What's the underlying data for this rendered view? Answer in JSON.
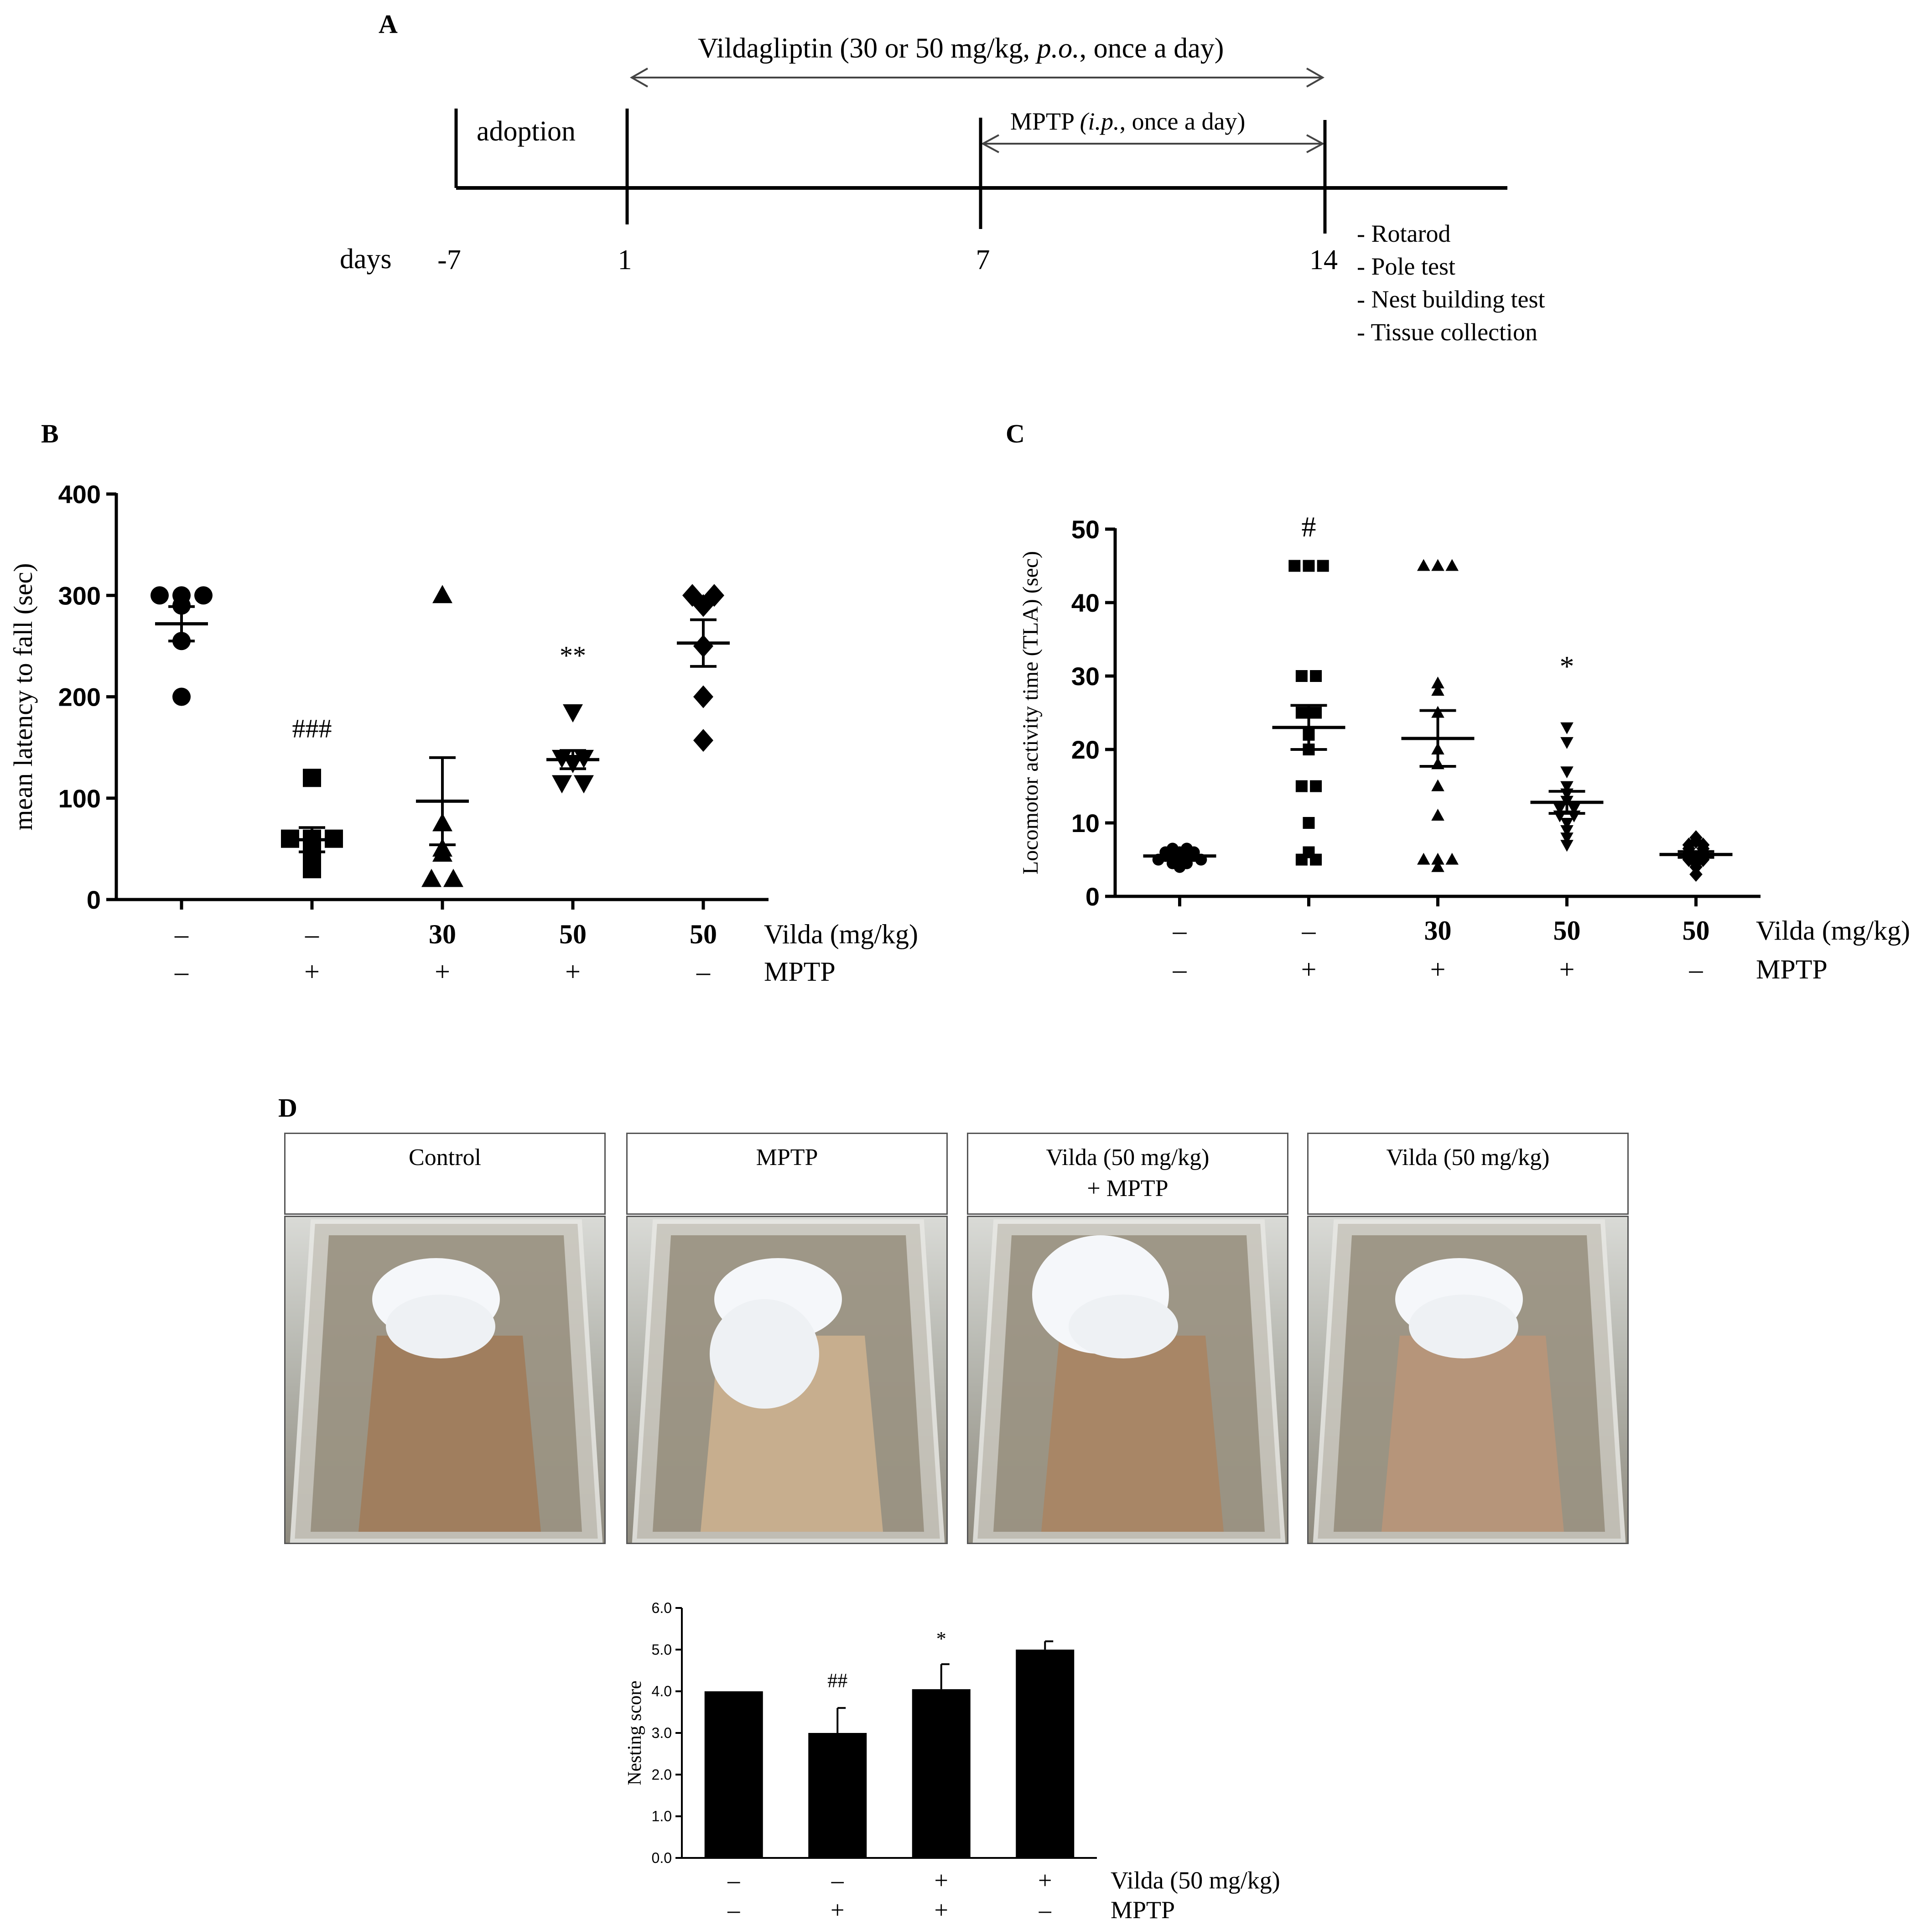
{
  "panel_letters": {
    "a": "A",
    "b": "B",
    "c": "C",
    "d": "D"
  },
  "timeline": {
    "drug_label_prefix": "Vildagliptin (30 or 50 mg/kg, ",
    "drug_label_italic": "p.o.",
    "drug_label_suffix": ", once a day)",
    "mptp_label_prefix": "MPTP ",
    "mptp_label_italic": "(i.p.",
    "mptp_label_suffix": ", once a day)",
    "adoption_label": "adoption",
    "days_label": "days",
    "ticks": [
      -7,
      1,
      7,
      14
    ],
    "tests": [
      "- Rotarod",
      "- Pole test",
      "- Nest building test",
      "- Tissue collection"
    ]
  },
  "treatment_rows": {
    "vilda_label": "Vilda (mg/kg)",
    "mptp_label": "MPTP",
    "vilda_50_label": "Vilda (50 mg/kg)"
  },
  "chart_data": [
    {
      "id": "B",
      "type": "scatter",
      "ylabel": "mean latency to fall (sec)",
      "ylim": [
        0,
        400
      ],
      "yticks": [
        0,
        100,
        200,
        300,
        400
      ],
      "groups": [
        {
          "vilda": "–",
          "mptp": "–",
          "marker": "circle",
          "mean": 272,
          "sem": 17,
          "points": [
            300,
            300,
            300,
            290,
            255,
            200
          ]
        },
        {
          "vilda": "–",
          "mptp": "+",
          "marker": "square",
          "mean": 59,
          "sem": 12,
          "points": [
            120,
            60,
            60,
            60,
            45,
            30
          ]
        },
        {
          "vilda": "30",
          "mptp": "+",
          "marker": "triangle",
          "mean": 97,
          "sem": 43,
          "points": [
            300,
            75,
            50,
            45,
            20,
            20
          ]
        },
        {
          "vilda": "50",
          "mptp": "+",
          "marker": "triangle-down",
          "mean": 138,
          "sem": 9,
          "points": [
            185,
            140,
            140,
            135,
            115,
            115
          ]
        },
        {
          "vilda": "50",
          "mptp": "–",
          "marker": "diamond",
          "mean": 253,
          "sem": 23,
          "points": [
            300,
            300,
            290,
            250,
            200,
            157
          ]
        }
      ],
      "annotations": [
        {
          "group": 1,
          "text": "###",
          "y": 160
        },
        {
          "group": 3,
          "text": "**",
          "y": 232
        }
      ]
    },
    {
      "id": "C",
      "type": "scatter",
      "ylabel": "Locomotor activity time (TLA)  (sec)",
      "ylim": [
        0,
        50
      ],
      "yticks": [
        0,
        10,
        20,
        30,
        40,
        50
      ],
      "groups": [
        {
          "vilda": "–",
          "mptp": "–",
          "marker": "circle",
          "mean": 5.5,
          "sem": 0.3,
          "points": [
            6.5,
            6.5,
            6,
            6,
            6,
            5.5,
            5.5,
            5.5,
            5,
            5,
            5,
            5,
            4.5,
            4.5,
            4
          ]
        },
        {
          "vilda": "–",
          "mptp": "+",
          "marker": "square",
          "mean": 23,
          "sem": 3,
          "points": [
            45,
            45,
            45,
            30,
            30,
            25,
            25,
            22,
            20,
            15,
            15,
            10,
            6,
            5,
            5
          ]
        },
        {
          "vilda": "30",
          "mptp": "+",
          "marker": "triangle",
          "mean": 21.5,
          "sem": 3.8,
          "points": [
            45,
            45,
            45,
            29,
            28,
            25,
            20,
            18,
            15,
            11,
            5,
            5,
            5,
            4
          ]
        },
        {
          "vilda": "50",
          "mptp": "+",
          "marker": "triangle-down",
          "mean": 12.8,
          "sem": 1.5,
          "points": [
            23,
            21,
            17,
            15,
            14,
            13,
            12,
            12,
            11,
            11,
            10,
            9,
            8,
            7
          ]
        },
        {
          "vilda": "50",
          "mptp": "–",
          "marker": "diamond",
          "mean": 5.7,
          "sem": 0.4,
          "points": [
            8,
            7.5,
            7,
            7,
            6.5,
            6.5,
            6,
            6,
            5.5,
            5.5,
            5,
            5,
            4.5,
            4,
            3
          ]
        }
      ],
      "annotations": [
        {
          "group": 1,
          "text": "#",
          "y": 49
        },
        {
          "group": 3,
          "text": "*",
          "y": 30
        }
      ]
    },
    {
      "id": "D",
      "type": "bar",
      "ylabel": "Nesting  score",
      "ylim": [
        0,
        6
      ],
      "yticks": [
        "0.0",
        "1.0",
        "2.0",
        "3.0",
        "4.0",
        "5.0",
        "6.0"
      ],
      "groups": [
        {
          "vilda": "–",
          "mptp": "–",
          "value": 4.0,
          "error": 0.0
        },
        {
          "vilda": "–",
          "mptp": "+",
          "value": 3.0,
          "error": 0.6
        },
        {
          "vilda": "+",
          "mptp": "+",
          "value": 4.05,
          "error": 0.6
        },
        {
          "vilda": "+",
          "mptp": "–",
          "value": 5.0,
          "error": 0.2
        }
      ],
      "annotations": [
        {
          "group": 1,
          "text": "##",
          "y": 4.1
        },
        {
          "group": 2,
          "text": "*",
          "y": 5.1
        }
      ]
    }
  ],
  "photos": [
    {
      "label": "Control",
      "label2": "",
      "tone": "#a07e5e"
    },
    {
      "label": "MPTP",
      "label2": "",
      "tone": "#c7ae8e"
    },
    {
      "label": "Vilda (50 mg/kg)",
      "label2": "+ MPTP",
      "tone": "#a88666"
    },
    {
      "label": "Vilda (50 mg/kg)",
      "label2": "",
      "tone": "#b6957a"
    }
  ]
}
